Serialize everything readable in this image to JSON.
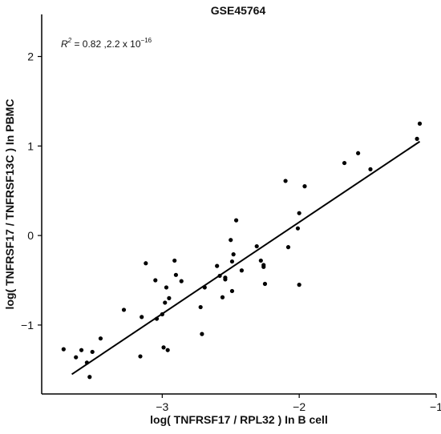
{
  "chart_data": {
    "type": "scatter",
    "title": "GSE45764",
    "xlabel": "log( TNFRSF17 / RPL32 ) In B cell",
    "ylabel": "log( TNFRSF17 / TNFRSF13C ) In PBMC",
    "xlim": [
      -3.88,
      -1.0
    ],
    "ylim": [
      -1.77,
      2.47
    ],
    "xticks": [
      -3,
      -2,
      -1
    ],
    "xtick_labels": [
      "−3",
      "−2",
      "−1"
    ],
    "yticks": [
      -1,
      0,
      1,
      2
    ],
    "ytick_labels": [
      "−1",
      "0",
      "1",
      "2"
    ],
    "grid": false,
    "annotation": {
      "r": "R",
      "r_sup": "2",
      "text": " = 0.82 ,2.2 x 10",
      "exp": "−16"
    },
    "trendline": {
      "x": [
        -3.66,
        -1.12
      ],
      "y": [
        -1.55,
        1.05
      ]
    },
    "points": [
      {
        "x": -3.72,
        "y": -1.27
      },
      {
        "x": -3.63,
        "y": -1.36
      },
      {
        "x": -3.59,
        "y": -1.28
      },
      {
        "x": -3.55,
        "y": -1.42
      },
      {
        "x": -3.53,
        "y": -1.58
      },
      {
        "x": -3.51,
        "y": -1.3
      },
      {
        "x": -3.45,
        "y": -1.15
      },
      {
        "x": -3.28,
        "y": -0.83
      },
      {
        "x": -3.16,
        "y": -1.35
      },
      {
        "x": -3.15,
        "y": -0.91
      },
      {
        "x": -3.12,
        "y": -0.31
      },
      {
        "x": -3.05,
        "y": -0.5
      },
      {
        "x": -3.04,
        "y": -0.93
      },
      {
        "x": -3.0,
        "y": -0.88
      },
      {
        "x": -2.99,
        "y": -1.25
      },
      {
        "x": -2.98,
        "y": -0.75
      },
      {
        "x": -2.97,
        "y": -0.58
      },
      {
        "x": -2.96,
        "y": -1.28
      },
      {
        "x": -2.95,
        "y": -0.7
      },
      {
        "x": -2.91,
        "y": -0.28
      },
      {
        "x": -2.9,
        "y": -0.44
      },
      {
        "x": -2.86,
        "y": -0.51
      },
      {
        "x": -2.72,
        "y": -0.8
      },
      {
        "x": -2.71,
        "y": -1.1
      },
      {
        "x": -2.69,
        "y": -0.58
      },
      {
        "x": -2.6,
        "y": -0.34
      },
      {
        "x": -2.58,
        "y": -0.45
      },
      {
        "x": -2.56,
        "y": -0.69
      },
      {
        "x": -2.54,
        "y": -0.47
      },
      {
        "x": -2.54,
        "y": -0.49
      },
      {
        "x": -2.5,
        "y": -0.05
      },
      {
        "x": -2.49,
        "y": -0.29
      },
      {
        "x": -2.49,
        "y": -0.62
      },
      {
        "x": -2.48,
        "y": -0.21
      },
      {
        "x": -2.46,
        "y": 0.17
      },
      {
        "x": -2.42,
        "y": -0.39
      },
      {
        "x": -2.31,
        "y": -0.12
      },
      {
        "x": -2.28,
        "y": -0.28
      },
      {
        "x": -2.26,
        "y": -0.33
      },
      {
        "x": -2.25,
        "y": -0.54
      },
      {
        "x": -2.26,
        "y": -0.35
      },
      {
        "x": -2.1,
        "y": 0.61
      },
      {
        "x": -2.08,
        "y": -0.13
      },
      {
        "x": -2.01,
        "y": 0.08
      },
      {
        "x": -2.0,
        "y": 0.25
      },
      {
        "x": -2.0,
        "y": -0.55
      },
      {
        "x": -1.96,
        "y": 0.55
      },
      {
        "x": -1.67,
        "y": 0.81
      },
      {
        "x": -1.57,
        "y": 0.92
      },
      {
        "x": -1.48,
        "y": 0.74
      },
      {
        "x": -1.14,
        "y": 1.08
      },
      {
        "x": -1.12,
        "y": 1.25
      }
    ]
  }
}
